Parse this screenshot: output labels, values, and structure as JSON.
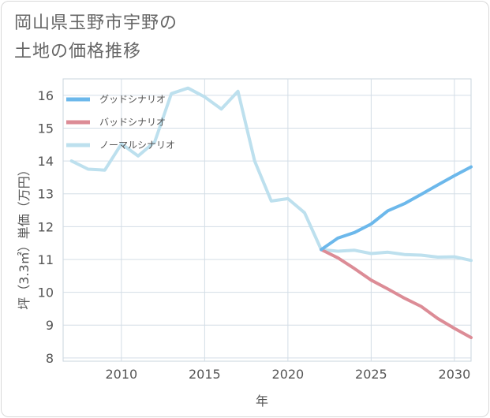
{
  "title": {
    "line1": "岡山県玉野市宇野の",
    "line2": "土地の価格推移"
  },
  "chart_data": {
    "type": "line",
    "title": "岡山県玉野市宇野の土地の価格推移",
    "xlabel": "年",
    "ylabel": "坪（3.3㎡）単価（万円）",
    "xlim": [
      2006.5,
      2031
    ],
    "ylim": [
      7.9,
      16.5
    ],
    "x_ticks": [
      2010,
      2015,
      2020,
      2025,
      2030
    ],
    "y_ticks": [
      8,
      9,
      10,
      11,
      12,
      13,
      14,
      15,
      16
    ],
    "grid": true,
    "legend_position": "top-left",
    "series": [
      {
        "name": "グッドシナリオ",
        "color": "#6cb8eb",
        "x": [
          2022,
          2023,
          2024,
          2025,
          2026,
          2027,
          2028,
          2029,
          2030,
          2031
        ],
        "values": [
          11.3,
          11.65,
          11.82,
          12.08,
          12.48,
          12.7,
          12.98,
          13.27,
          13.55,
          13.82
        ]
      },
      {
        "name": "バッドシナリオ",
        "color": "#dc8c96",
        "x": [
          2022,
          2023,
          2024,
          2025,
          2026,
          2027,
          2028,
          2029,
          2030,
          2031
        ],
        "values": [
          11.3,
          11.05,
          10.72,
          10.37,
          10.1,
          9.82,
          9.57,
          9.2,
          8.9,
          8.62
        ]
      },
      {
        "name": "ノーマルシナリオ",
        "color": "#bde0ee",
        "x": [
          2007,
          2008,
          2009,
          2010,
          2011,
          2012,
          2013,
          2014,
          2015,
          2016,
          2017,
          2018,
          2019,
          2020,
          2021,
          2022,
          2023,
          2024,
          2025,
          2026,
          2027,
          2028,
          2029,
          2030,
          2031
        ],
        "values": [
          14.0,
          13.75,
          13.72,
          14.52,
          14.15,
          14.58,
          16.05,
          16.22,
          15.95,
          15.58,
          16.12,
          14.0,
          12.78,
          12.85,
          12.42,
          11.3,
          11.25,
          11.28,
          11.18,
          11.22,
          11.15,
          11.13,
          11.07,
          11.08,
          10.97
        ]
      }
    ]
  }
}
